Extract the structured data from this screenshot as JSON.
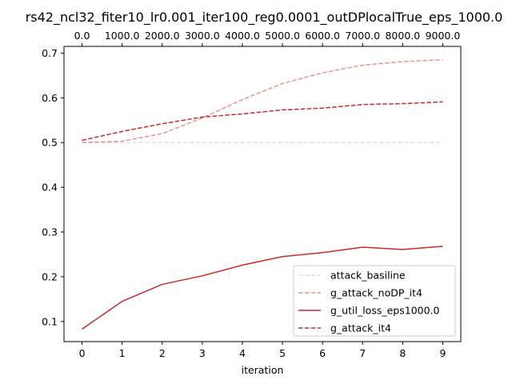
{
  "chart_data": {
    "type": "line",
    "title": "rs42_ncl32_fiter10_lr0.001_iter100_reg0.0001_outDPlocalTrue_eps_1000.0",
    "xlabel": "iteration",
    "ylabel": "",
    "x": [
      0,
      1,
      2,
      3,
      4,
      5,
      6,
      7,
      8,
      9
    ],
    "xlim": [
      -0.45,
      9.45
    ],
    "ylim": [
      0.055,
      0.715
    ],
    "x_ticks": [
      "0",
      "1",
      "2",
      "3",
      "4",
      "5",
      "6",
      "7",
      "8",
      "9"
    ],
    "y_ticks": [
      {
        "value": 0.1,
        "label": "0.1"
      },
      {
        "value": 0.2,
        "label": "0.2"
      },
      {
        "value": 0.3,
        "label": "0.3"
      },
      {
        "value": 0.4,
        "label": "0.4"
      },
      {
        "value": 0.5,
        "label": "0.5"
      },
      {
        "value": 0.6,
        "label": "0.6"
      },
      {
        "value": 0.7,
        "label": "0.7"
      }
    ],
    "top_axis_ticks": [
      "0.0",
      "1000.0",
      "2000.0",
      "3000.0",
      "4000.0",
      "5000.0",
      "6000.0",
      "7000.0",
      "8000.0",
      "9000.0"
    ],
    "grid": false,
    "legend_position": "lower-right",
    "series": [
      {
        "name": "attack_basiline",
        "color": "#e6dddd",
        "dash": "dashed",
        "values": [
          0.5,
          0.5,
          0.5,
          0.5,
          0.5,
          0.5,
          0.5,
          0.5,
          0.5,
          0.5
        ]
      },
      {
        "name": "g_attack_noDP_it4",
        "color": "#e89496",
        "dash": "dashed",
        "values": [
          0.5,
          0.503,
          0.52,
          0.555,
          0.596,
          0.632,
          0.656,
          0.673,
          0.681,
          0.685
        ]
      },
      {
        "name": "g_util_loss_eps1000.0",
        "color": "#cc2a2a",
        "dash": "solid",
        "values": [
          0.083,
          0.145,
          0.183,
          0.202,
          0.226,
          0.245,
          0.254,
          0.266,
          0.261,
          0.268
        ]
      },
      {
        "name": "g_attack_it4",
        "color": "#cc2a2a",
        "dash": "dashed",
        "values": [
          0.505,
          0.525,
          0.542,
          0.557,
          0.564,
          0.573,
          0.577,
          0.585,
          0.587,
          0.591
        ]
      }
    ]
  }
}
